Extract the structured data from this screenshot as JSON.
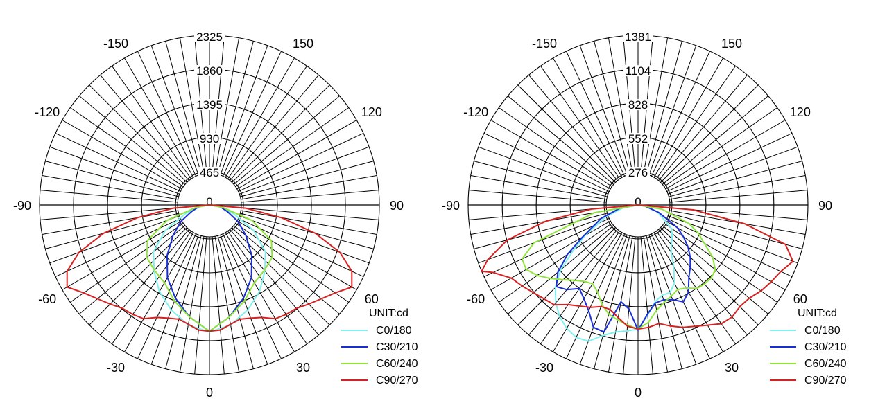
{
  "chart_data": [
    {
      "type": "polar",
      "unit_label": "UNIT:cd",
      "rings": [
        465,
        930,
        1395,
        1860,
        2325
      ],
      "rmax": 2325,
      "ring_labels": [
        "465",
        "930",
        "1395",
        "1860",
        "2325"
      ],
      "center_label": "0",
      "angle_labels": [
        {
          "angle": 0,
          "text": "0"
        },
        {
          "angle": 30,
          "text": "30"
        },
        {
          "angle": 60,
          "text": "60"
        },
        {
          "angle": 90,
          "text": "90"
        },
        {
          "angle": 120,
          "text": "120"
        },
        {
          "angle": 150,
          "text": "150"
        },
        {
          "angle": -30,
          "text": "-30"
        },
        {
          "angle": -60,
          "text": "-60"
        },
        {
          "angle": -90,
          "text": "-90"
        },
        {
          "angle": -120,
          "text": "-120"
        },
        {
          "angle": -150,
          "text": "-150"
        }
      ],
      "series": [
        {
          "name": "C0/180",
          "color": "#7ff0ee",
          "points": [
            [
              -90,
              0
            ],
            [
              -80,
              130
            ],
            [
              -70,
              350
            ],
            [
              -60,
              700
            ],
            [
              -50,
              1000
            ],
            [
              -40,
              1180
            ],
            [
              -30,
              1370
            ],
            [
              -20,
              1530
            ],
            [
              -10,
              1670
            ],
            [
              0,
              1740
            ],
            [
              10,
              1670
            ],
            [
              20,
              1530
            ],
            [
              30,
              1370
            ],
            [
              40,
              1180
            ],
            [
              50,
              1000
            ],
            [
              60,
              700
            ],
            [
              70,
              350
            ],
            [
              80,
              130
            ],
            [
              90,
              0
            ]
          ]
        },
        {
          "name": "C30/210",
          "color": "#1a2ed6",
          "points": [
            [
              -90,
              0
            ],
            [
              -80,
              150
            ],
            [
              -70,
              260
            ],
            [
              -60,
              450
            ],
            [
              -50,
              650
            ],
            [
              -40,
              900
            ],
            [
              -30,
              1150
            ],
            [
              -20,
              1360
            ],
            [
              -10,
              1560
            ],
            [
              0,
              1730
            ],
            [
              10,
              1560
            ],
            [
              20,
              1360
            ],
            [
              30,
              1150
            ],
            [
              40,
              900
            ],
            [
              50,
              650
            ],
            [
              60,
              450
            ],
            [
              70,
              260
            ],
            [
              80,
              150
            ],
            [
              90,
              0
            ]
          ]
        },
        {
          "name": "C60/240",
          "color": "#8fe63a",
          "points": [
            [
              -90,
              0
            ],
            [
              -80,
              180
            ],
            [
              -70,
              620
            ],
            [
              -60,
              980
            ],
            [
              -50,
              1120
            ],
            [
              -40,
              1170
            ],
            [
              -30,
              1230
            ],
            [
              -20,
              1400
            ],
            [
              -10,
              1560
            ],
            [
              0,
              1730
            ],
            [
              10,
              1560
            ],
            [
              20,
              1400
            ],
            [
              30,
              1230
            ],
            [
              40,
              1170
            ],
            [
              50,
              1120
            ],
            [
              60,
              980
            ],
            [
              70,
              620
            ],
            [
              80,
              180
            ],
            [
              90,
              0
            ]
          ]
        },
        {
          "name": "C90/270",
          "color": "#d72020",
          "points": [
            [
              -90,
              0
            ],
            [
              -85,
              500
            ],
            [
              -80,
              1000
            ],
            [
              -75,
              1500
            ],
            [
              -70,
              1900
            ],
            [
              -65,
              2150
            ],
            [
              -60,
              2250
            ],
            [
              -55,
              2100
            ],
            [
              -50,
              2000
            ],
            [
              -45,
              1920
            ],
            [
              -40,
              1850
            ],
            [
              -35,
              1830
            ],
            [
              -30,
              1800
            ],
            [
              -25,
              1700
            ],
            [
              -20,
              1650
            ],
            [
              -15,
              1620
            ],
            [
              -10,
              1660
            ],
            [
              -5,
              1720
            ],
            [
              0,
              1730
            ],
            [
              5,
              1720
            ],
            [
              10,
              1660
            ],
            [
              15,
              1620
            ],
            [
              20,
              1650
            ],
            [
              25,
              1700
            ],
            [
              30,
              1800
            ],
            [
              35,
              1830
            ],
            [
              40,
              1850
            ],
            [
              45,
              1920
            ],
            [
              50,
              2000
            ],
            [
              55,
              2100
            ],
            [
              60,
              2250
            ],
            [
              65,
              2150
            ],
            [
              70,
              1900
            ],
            [
              75,
              1500
            ],
            [
              80,
              1000
            ],
            [
              85,
              500
            ],
            [
              90,
              0
            ]
          ]
        }
      ]
    },
    {
      "type": "polar",
      "unit_label": "UNIT:cd",
      "rings": [
        276,
        552,
        828,
        1104,
        1381
      ],
      "rmax": 1381,
      "ring_labels": [
        "276",
        "552",
        "828",
        "1104",
        "1381"
      ],
      "center_label": "0",
      "angle_labels": [
        {
          "angle": 0,
          "text": "0"
        },
        {
          "angle": 30,
          "text": "30"
        },
        {
          "angle": 60,
          "text": "60"
        },
        {
          "angle": 90,
          "text": "90"
        },
        {
          "angle": 120,
          "text": "120"
        },
        {
          "angle": 150,
          "text": "150"
        },
        {
          "angle": -30,
          "text": "-30"
        },
        {
          "angle": -60,
          "text": "-60"
        },
        {
          "angle": -90,
          "text": "-90"
        },
        {
          "angle": -120,
          "text": "-120"
        },
        {
          "angle": -150,
          "text": "-150"
        }
      ],
      "series": [
        {
          "name": "C0/180",
          "color": "#7ff0ee",
          "points": [
            [
              -90,
              0
            ],
            [
              -80,
              120
            ],
            [
              -70,
              280
            ],
            [
              -60,
              500
            ],
            [
              -55,
              640
            ],
            [
              -50,
              820
            ],
            [
              -45,
              950
            ],
            [
              -40,
              1040
            ],
            [
              -35,
              1110
            ],
            [
              -30,
              1160
            ],
            [
              -25,
              1190
            ],
            [
              -20,
              1180
            ],
            [
              -15,
              1100
            ],
            [
              -10,
              1050
            ],
            [
              -5,
              1030
            ],
            [
              0,
              1010
            ],
            [
              5,
              900
            ],
            [
              10,
              800
            ],
            [
              15,
              760
            ],
            [
              20,
              760
            ],
            [
              25,
              700
            ],
            [
              30,
              580
            ],
            [
              35,
              470
            ],
            [
              40,
              420
            ],
            [
              45,
              390
            ],
            [
              50,
              360
            ],
            [
              55,
              330
            ],
            [
              60,
              250
            ],
            [
              70,
              170
            ],
            [
              80,
              60
            ],
            [
              90,
              0
            ]
          ]
        },
        {
          "name": "C30/210",
          "color": "#1a2ed6",
          "points": [
            [
              -90,
              0
            ],
            [
              -80,
              150
            ],
            [
              -70,
              320
            ],
            [
              -60,
              520
            ],
            [
              -55,
              700
            ],
            [
              -50,
              850
            ],
            [
              -45,
              940
            ],
            [
              -40,
              900
            ],
            [
              -35,
              830
            ],
            [
              -30,
              880
            ],
            [
              -25,
              950
            ],
            [
              -20,
              1060
            ],
            [
              -15,
              1070
            ],
            [
              -10,
              800
            ],
            [
              -5,
              850
            ],
            [
              0,
              1020
            ],
            [
              5,
              890
            ],
            [
              10,
              810
            ],
            [
              15,
              800
            ],
            [
              20,
              820
            ],
            [
              25,
              870
            ],
            [
              30,
              820
            ],
            [
              35,
              720
            ],
            [
              40,
              660
            ],
            [
              45,
              600
            ],
            [
              50,
              530
            ],
            [
              55,
              450
            ],
            [
              60,
              370
            ],
            [
              70,
              180
            ],
            [
              80,
              60
            ],
            [
              90,
              0
            ]
          ]
        },
        {
          "name": "C60/240",
          "color": "#8fe63a",
          "points": [
            [
              -90,
              0
            ],
            [
              -80,
              360
            ],
            [
              -70,
              900
            ],
            [
              -65,
              1040
            ],
            [
              -60,
              1050
            ],
            [
              -55,
              1000
            ],
            [
              -50,
              930
            ],
            [
              -45,
              860
            ],
            [
              -40,
              800
            ],
            [
              -35,
              760
            ],
            [
              -30,
              740
            ],
            [
              -25,
              780
            ],
            [
              -20,
              860
            ],
            [
              -15,
              920
            ],
            [
              -10,
              950
            ],
            [
              -5,
              980
            ],
            [
              0,
              1010
            ],
            [
              5,
              960
            ],
            [
              10,
              870
            ],
            [
              15,
              820
            ],
            [
              20,
              790
            ],
            [
              25,
              760
            ],
            [
              30,
              780
            ],
            [
              35,
              830
            ],
            [
              40,
              840
            ],
            [
              45,
              840
            ],
            [
              50,
              820
            ],
            [
              55,
              740
            ],
            [
              60,
              620
            ],
            [
              65,
              540
            ],
            [
              70,
              440
            ],
            [
              80,
              200
            ],
            [
              90,
              0
            ]
          ]
        },
        {
          "name": "C90/270",
          "color": "#d72020",
          "points": [
            [
              -90,
              0
            ],
            [
              -85,
              380
            ],
            [
              -80,
              760
            ],
            [
              -75,
              1100
            ],
            [
              -70,
              1300
            ],
            [
              -67,
              1381
            ],
            [
              -65,
              1300
            ],
            [
              -60,
              1190
            ],
            [
              -55,
              1150
            ],
            [
              -50,
              1110
            ],
            [
              -45,
              1080
            ],
            [
              -40,
              1060
            ],
            [
              -35,
              990
            ],
            [
              -30,
              950
            ],
            [
              -25,
              920
            ],
            [
              -20,
              880
            ],
            [
              -15,
              880
            ],
            [
              -10,
              930
            ],
            [
              -5,
              990
            ],
            [
              0,
              1010
            ],
            [
              5,
              1000
            ],
            [
              10,
              980
            ],
            [
              15,
              1020
            ],
            [
              20,
              1060
            ],
            [
              25,
              1090
            ],
            [
              30,
              1130
            ],
            [
              35,
              1180
            ],
            [
              40,
              1190
            ],
            [
              45,
              1170
            ],
            [
              50,
              1180
            ],
            [
              55,
              1220
            ],
            [
              60,
              1250
            ],
            [
              65,
              1280
            ],
            [
              70,
              1340
            ],
            [
              75,
              1240
            ],
            [
              80,
              880
            ],
            [
              85,
              450
            ],
            [
              90,
              0
            ]
          ]
        }
      ]
    }
  ]
}
